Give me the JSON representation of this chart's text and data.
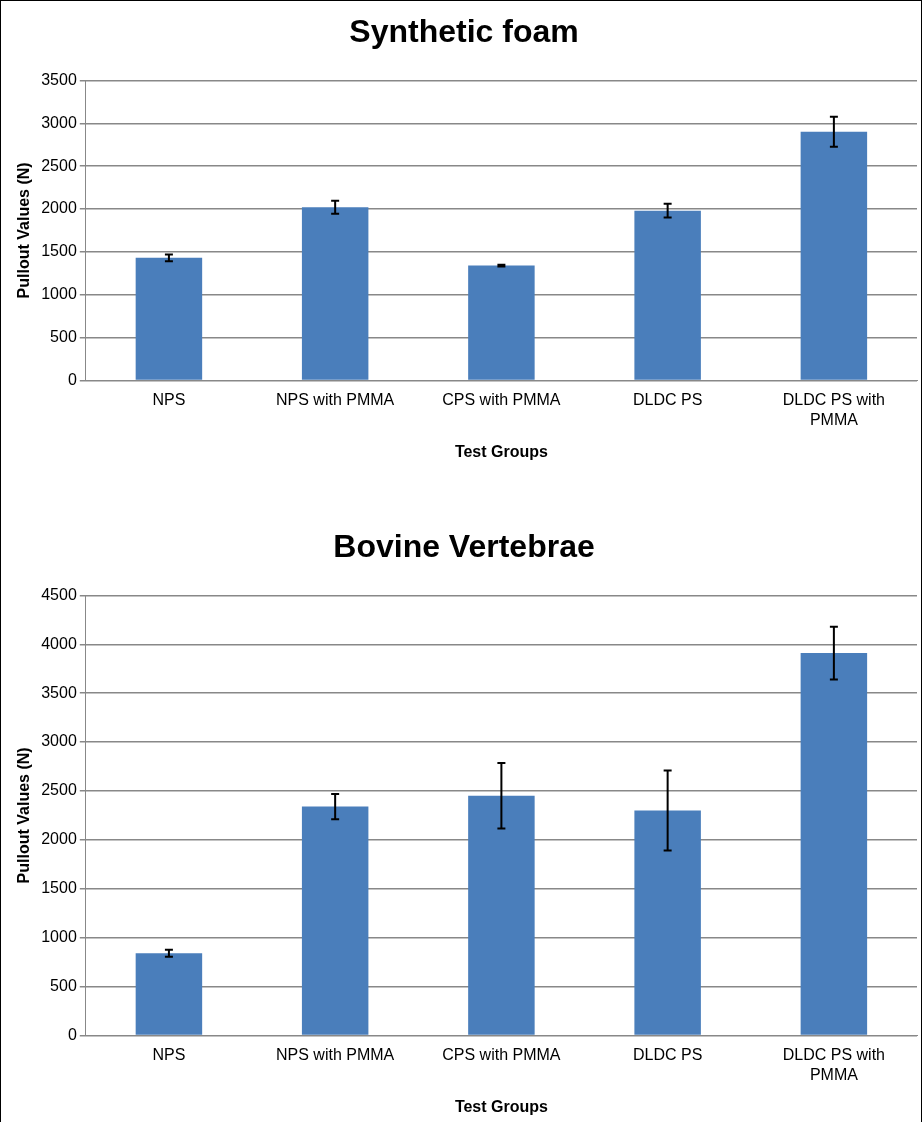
{
  "chart_data": [
    {
      "type": "bar",
      "title": "Synthetic foam",
      "xlabel": "Test Groups",
      "ylabel": "Pullout Values (N)",
      "categories": [
        "NPS",
        "NPS with PMMA",
        "CPS with PMMA",
        "DLDC PS",
        "DLDC PS with PMMA"
      ],
      "values": [
        1430,
        2020,
        1340,
        1980,
        2900
      ],
      "errors": [
        40,
        75,
        10,
        80,
        175
      ],
      "color": "#4a7ebb",
      "ylim": [
        0,
        3500
      ],
      "yticks": [
        0,
        500,
        1000,
        1500,
        2000,
        2500,
        3000,
        3500
      ],
      "grid": "y",
      "legend": false
    },
    {
      "type": "bar",
      "title": "Bovine Vertebrae",
      "xlabel": "Test Groups",
      "ylabel": "Pullout Values (N)",
      "categories": [
        "NPS",
        "NPS with PMMA",
        "CPS with PMMA",
        "DLDC PS",
        "DLDC PS with PMMA"
      ],
      "values": [
        840,
        2340,
        2450,
        2300,
        3910
      ],
      "errors": [
        35,
        130,
        335,
        410,
        270
      ],
      "color": "#4a7ebb",
      "ylim": [
        0,
        4500
      ],
      "yticks": [
        0,
        500,
        1000,
        1500,
        2000,
        2500,
        3000,
        3500,
        4000,
        4500
      ],
      "grid": "y",
      "legend": false
    }
  ]
}
